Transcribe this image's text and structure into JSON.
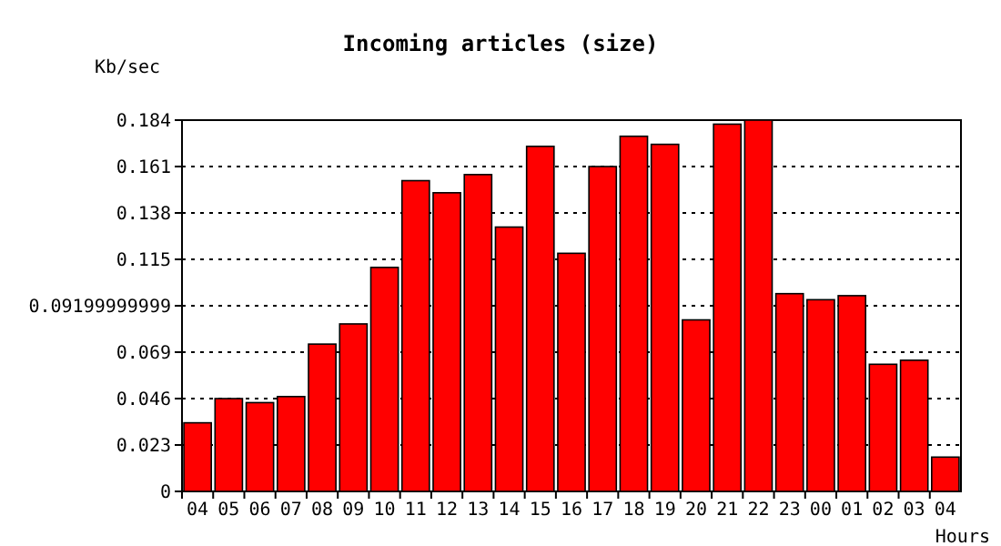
{
  "chart_data": {
    "type": "bar",
    "title": "Incoming articles (size)",
    "ylabel": "Kb/sec",
    "xlabel": "Hours",
    "categories": [
      "04",
      "05",
      "06",
      "07",
      "08",
      "09",
      "10",
      "11",
      "12",
      "13",
      "14",
      "15",
      "16",
      "17",
      "18",
      "19",
      "20",
      "21",
      "22",
      "23",
      "00",
      "01",
      "02",
      "03",
      "04"
    ],
    "values": [
      0.034,
      0.046,
      0.044,
      0.047,
      0.073,
      0.083,
      0.111,
      0.154,
      0.148,
      0.157,
      0.131,
      0.171,
      0.118,
      0.161,
      0.176,
      0.172,
      0.085,
      0.182,
      0.184,
      0.098,
      0.095,
      0.097,
      0.063,
      0.065,
      0.017
    ],
    "color": "#ff0000",
    "ylim": [
      0,
      0.184
    ],
    "yticks": [
      0,
      0.023,
      0.046,
      0.069,
      0.09199999999,
      0.115,
      0.138,
      0.161,
      0.184
    ],
    "grid": "y"
  }
}
